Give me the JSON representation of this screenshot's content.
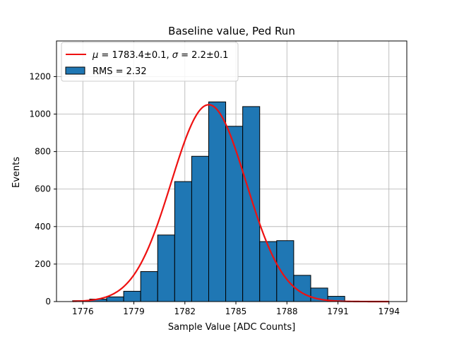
{
  "chart_data": {
    "type": "bar",
    "title": "Baseline value, Ped Run",
    "xlabel": "Sample Value [ADC Counts]",
    "ylabel": "Events",
    "xlim": [
      1774.45,
      1795.05
    ],
    "ylim": [
      0,
      1390
    ],
    "xticks": [
      1776,
      1779,
      1782,
      1785,
      1788,
      1791,
      1794
    ],
    "yticks": [
      0,
      200,
      400,
      600,
      800,
      1000,
      1200
    ],
    "grid": true,
    "legend_position": "top-left",
    "histogram": {
      "bin_edges": [
        1775.4,
        1776.4,
        1777.4,
        1778.4,
        1779.4,
        1780.4,
        1781.4,
        1782.4,
        1783.4,
        1784.4,
        1785.4,
        1786.4,
        1787.4,
        1788.4,
        1789.4,
        1790.4,
        1791.4
      ],
      "counts": [
        5,
        13,
        25,
        55,
        160,
        355,
        640,
        775,
        1065,
        935,
        1040,
        320,
        325,
        140,
        72,
        28,
        0
      ],
      "label": "RMS = 2.32",
      "color": "#1f77b4",
      "edgecolor": "#000000"
    },
    "fit": {
      "function": "gaussian",
      "mu": 1783.4,
      "sigma": 2.2,
      "amplitude": 1050,
      "x_range": [
        1775.4,
        1794
      ],
      "label_math": "μ = 1783.4±0.1, σ = 2.2±0.1",
      "color": "#ee1111"
    }
  },
  "legend": {
    "fit_mu_symbol": "μ",
    "fit_mu_text": " = 1783.4±0.1, ",
    "fit_sigma_symbol": "σ",
    "fit_sigma_text": " = 2.2±0.1",
    "hist_label": "RMS = 2.32"
  }
}
